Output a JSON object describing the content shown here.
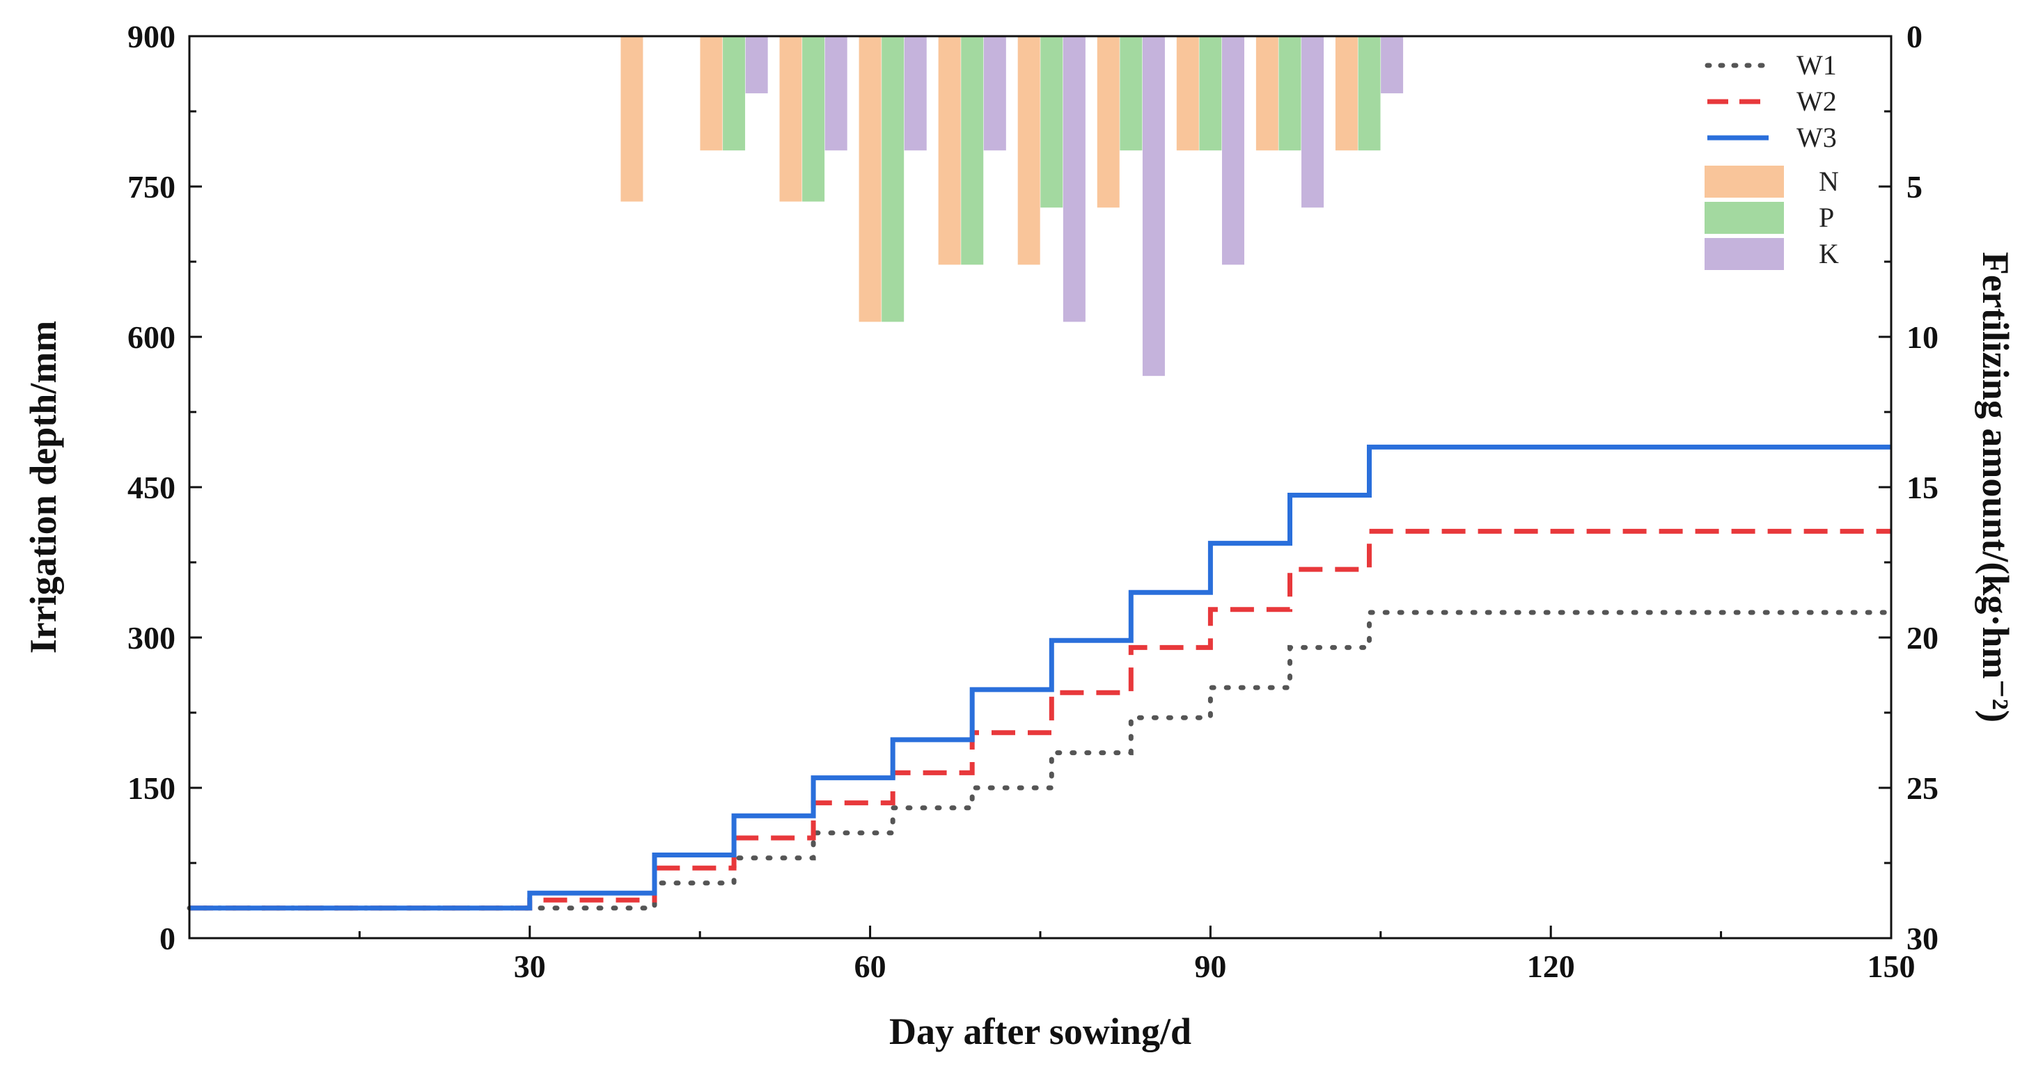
{
  "chart_data": {
    "type": "line+bar",
    "title": "",
    "xlabel": "Day after sowing/d",
    "ylabel_left": "Irrigation depth/mm",
    "ylabel_right": "Fertilizing amount/(kg·hm⁻²)",
    "xlim": [
      0,
      150
    ],
    "ylim_left": [
      0,
      900
    ],
    "ylim_right": [
      0,
      30
    ],
    "right_axis_inverted": true,
    "x_ticks": [
      30,
      60,
      90,
      120,
      150
    ],
    "x_tick_labels": [
      "30",
      "60",
      "90",
      "120",
      "150"
    ],
    "y_left_ticks": [
      0,
      150,
      300,
      450,
      600,
      750,
      900
    ],
    "y_left_tick_labels": [
      "0",
      "150",
      "300",
      "450",
      "600",
      "750",
      "900"
    ],
    "y_right_ticks": [
      0,
      5,
      10,
      15,
      20,
      25,
      30
    ],
    "y_right_tick_labels": [
      "0",
      "5",
      "10",
      "15",
      "20",
      "25",
      "30"
    ],
    "legend_position": "top-right",
    "lines": [
      {
        "name": "W1",
        "style": "dotted",
        "color": "#555555",
        "points": [
          [
            0,
            30
          ],
          [
            30,
            30
          ],
          [
            30,
            30
          ],
          [
            41,
            30
          ],
          [
            41,
            55
          ],
          [
            48,
            55
          ],
          [
            48,
            80
          ],
          [
            55,
            80
          ],
          [
            55,
            105
          ],
          [
            62,
            105
          ],
          [
            62,
            130
          ],
          [
            69,
            130
          ],
          [
            69,
            150
          ],
          [
            76,
            150
          ],
          [
            76,
            165
          ],
          [
            76,
            185
          ],
          [
            83,
            185
          ],
          [
            83,
            200
          ],
          [
            83,
            220
          ],
          [
            90,
            220
          ],
          [
            90,
            250
          ],
          [
            97,
            250
          ],
          [
            97,
            260
          ],
          [
            97,
            290
          ],
          [
            104,
            290
          ],
          [
            104,
            325
          ],
          [
            150,
            325
          ]
        ]
      },
      {
        "name": "W2",
        "style": "dashed",
        "color": "#e8383b",
        "points": [
          [
            0,
            30
          ],
          [
            30,
            30
          ],
          [
            30,
            38
          ],
          [
            41,
            38
          ],
          [
            41,
            70
          ],
          [
            48,
            70
          ],
          [
            48,
            100
          ],
          [
            55,
            100
          ],
          [
            55,
            135
          ],
          [
            62,
            135
          ],
          [
            62,
            165
          ],
          [
            69,
            165
          ],
          [
            69,
            205
          ],
          [
            76,
            205
          ],
          [
            76,
            245
          ],
          [
            83,
            245
          ],
          [
            83,
            290
          ],
          [
            90,
            290
          ],
          [
            90,
            328
          ],
          [
            97,
            328
          ],
          [
            97,
            368
          ],
          [
            104,
            368
          ],
          [
            104,
            406
          ],
          [
            150,
            406
          ]
        ]
      },
      {
        "name": "W3",
        "style": "solid",
        "color": "#2a6fdb",
        "points": [
          [
            0,
            30
          ],
          [
            30,
            30
          ],
          [
            30,
            45
          ],
          [
            41,
            45
          ],
          [
            41,
            83
          ],
          [
            48,
            83
          ],
          [
            48,
            122
          ],
          [
            55,
            122
          ],
          [
            55,
            160
          ],
          [
            62,
            160
          ],
          [
            62,
            198
          ],
          [
            69,
            198
          ],
          [
            69,
            248
          ],
          [
            76,
            248
          ],
          [
            76,
            297
          ],
          [
            83,
            297
          ],
          [
            83,
            345
          ],
          [
            90,
            345
          ],
          [
            90,
            394
          ],
          [
            97,
            394
          ],
          [
            97,
            442
          ],
          [
            104,
            442
          ],
          [
            104,
            490
          ],
          [
            150,
            490
          ]
        ]
      }
    ],
    "bar_series": [
      {
        "name": "N",
        "color": "#f9c59a",
        "data": [
          [
            39,
            5.5
          ],
          [
            46,
            3.8
          ],
          [
            53,
            5.5
          ],
          [
            60,
            9.5
          ],
          [
            67,
            7.6
          ],
          [
            74,
            7.6
          ],
          [
            81,
            5.7
          ],
          [
            88,
            3.8
          ],
          [
            95,
            3.8
          ],
          [
            102,
            3.8
          ]
        ]
      },
      {
        "name": "P",
        "color": "#a3d9a0",
        "data": [
          [
            48,
            3.8
          ],
          [
            55,
            5.5
          ],
          [
            62,
            9.5
          ],
          [
            69,
            7.6
          ],
          [
            76,
            5.7
          ],
          [
            83,
            3.8
          ],
          [
            90,
            3.8
          ],
          [
            97,
            3.8
          ],
          [
            104,
            3.8
          ]
        ]
      },
      {
        "name": "K",
        "color": "#c5b3dc",
        "data": [
          [
            50,
            1.9
          ],
          [
            57,
            3.8
          ],
          [
            64,
            3.8
          ],
          [
            71,
            3.8
          ],
          [
            78,
            9.5
          ],
          [
            85,
            11.3
          ],
          [
            92,
            7.6
          ],
          [
            99,
            5.7
          ],
          [
            106,
            1.9
          ]
        ]
      }
    ],
    "legend": [
      "W1",
      "W2",
      "W3",
      "N",
      "P",
      "K"
    ]
  }
}
